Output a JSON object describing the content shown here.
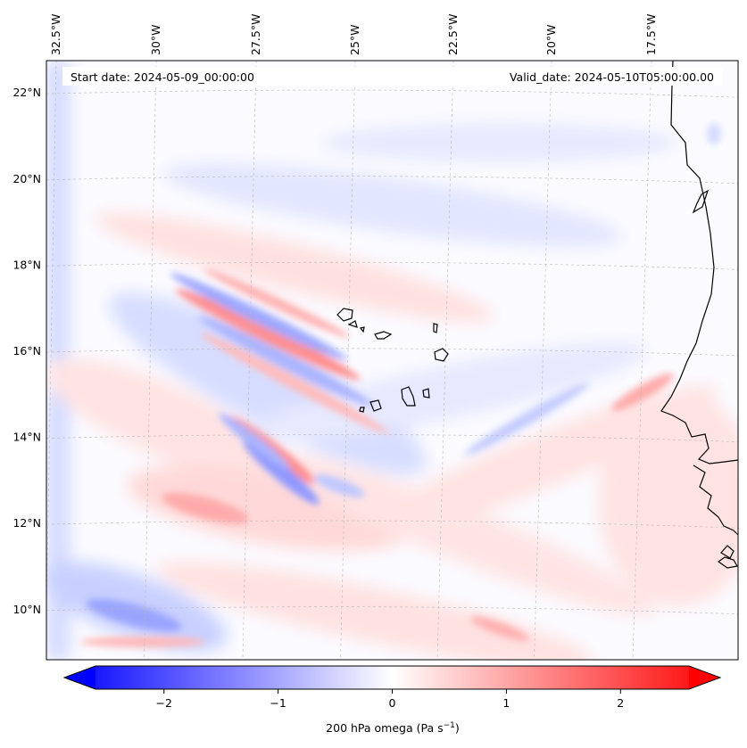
{
  "header": {
    "start_date": "Start date: 2024-05-09_00:00:00",
    "valid_date": "Valid_date: 2024-05-10T05:00:00.00"
  },
  "map": {
    "variable": "200 hPa omega",
    "units": "Pa s",
    "units_exponent": "−1",
    "longitude_labels": [
      "32.5°W",
      "30°W",
      "27.5°W",
      "25°W",
      "22.5°W",
      "20°W",
      "17.5°W"
    ],
    "longitude_values": [
      -32.5,
      -30,
      -27.5,
      -25,
      -22.5,
      -20,
      -17.5
    ],
    "latitude_labels": [
      "22°N",
      "20°N",
      "18°N",
      "16°N",
      "14°N",
      "12°N",
      "10°N"
    ],
    "latitude_values": [
      22,
      20,
      18,
      16,
      14,
      12,
      10
    ],
    "extent": {
      "lon_min": -33.0,
      "lon_max": -15.4,
      "lat_min": 8.9,
      "lat_max": 22.7
    },
    "gridlines": true,
    "coastline_color": "#000000",
    "islands": "Cabo Verde",
    "coast": "West Africa (Mauritania, Senegal, Gambia, Guinea-Bissau)"
  },
  "colorbar": {
    "colormap": "bwr",
    "min": -2.6,
    "max": 2.6,
    "extend": "both",
    "ticks": [
      -2,
      -1,
      0,
      1,
      2
    ],
    "tick_labels": [
      "−2",
      "−1",
      "0",
      "1",
      "2"
    ],
    "color_low": "#0000ff",
    "color_mid": "#ffffff",
    "color_high": "#ff0000"
  }
}
